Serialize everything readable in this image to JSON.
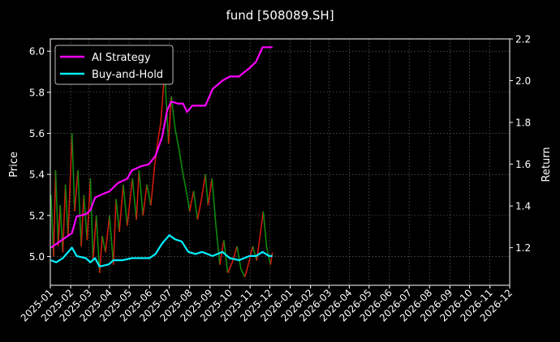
{
  "chart_data": {
    "type": "line",
    "title": "fund [508089.SH]",
    "ylabel_left": "Price",
    "ylabel_right": "Return",
    "grid": true,
    "legend_position": "top-left",
    "x_ticks": [
      "2025-01",
      "2025-02",
      "2025-03",
      "2025-04",
      "2025-05",
      "2025-06",
      "2025-07",
      "2025-08",
      "2025-09",
      "2025-10",
      "2025-11",
      "2025-12",
      "2026-01",
      "2026-02",
      "2026-03",
      "2026-04",
      "2026-05",
      "2026-06",
      "2026-07",
      "2026-08",
      "2026-09",
      "2026-10",
      "2026-11",
      "2026-12"
    ],
    "x_range": [
      "2025-01",
      "2026-12"
    ],
    "left_axis": {
      "range": [
        4.86,
        6.06
      ],
      "ticks": [
        "4.8",
        "5.0",
        "5.2",
        "5.4",
        "5.6",
        "5.8",
        "6.0"
      ]
    },
    "right_axis": {
      "range": [
        1.02,
        2.2
      ],
      "ticks": [
        "1.2",
        "1.4",
        "1.6",
        "1.8",
        "2.0",
        "2.2"
      ]
    },
    "price_series": {
      "colors": {
        "up": "#d01c0c",
        "down": "#0e8a0e"
      },
      "points": [
        [
          "2025-01-02",
          5.3
        ],
        [
          "2025-01-06",
          5.0
        ],
        [
          "2025-01-09",
          5.42
        ],
        [
          "2025-01-13",
          5.05
        ],
        [
          "2025-01-16",
          5.25
        ],
        [
          "2025-01-20",
          5.02
        ],
        [
          "2025-01-24",
          5.35
        ],
        [
          "2025-01-28",
          5.1
        ],
        [
          "2025-02-03",
          5.6
        ],
        [
          "2025-02-07",
          5.22
        ],
        [
          "2025-02-12",
          5.42
        ],
        [
          "2025-02-17",
          5.05
        ],
        [
          "2025-02-21",
          5.3
        ],
        [
          "2025-02-26",
          5.08
        ],
        [
          "2025-03-03",
          5.38
        ],
        [
          "2025-03-07",
          4.98
        ],
        [
          "2025-03-12",
          5.2
        ],
        [
          "2025-03-17",
          4.92
        ],
        [
          "2025-03-21",
          5.1
        ],
        [
          "2025-03-26",
          5.02
        ],
        [
          "2025-04-01",
          5.2
        ],
        [
          "2025-04-07",
          4.96
        ],
        [
          "2025-04-11",
          5.28
        ],
        [
          "2025-04-16",
          5.12
        ],
        [
          "2025-04-22",
          5.35
        ],
        [
          "2025-04-28",
          5.15
        ],
        [
          "2025-05-06",
          5.38
        ],
        [
          "2025-05-12",
          5.18
        ],
        [
          "2025-05-16",
          5.42
        ],
        [
          "2025-05-22",
          5.2
        ],
        [
          "2025-05-28",
          5.35
        ],
        [
          "2025-06-03",
          5.25
        ],
        [
          "2025-06-09",
          5.45
        ],
        [
          "2025-06-13",
          5.55
        ],
        [
          "2025-06-18",
          5.65
        ],
        [
          "2025-06-24",
          5.9
        ],
        [
          "2025-06-30",
          5.55
        ],
        [
          "2025-07-04",
          5.78
        ],
        [
          "2025-07-10",
          5.62
        ],
        [
          "2025-07-16",
          5.52
        ],
        [
          "2025-07-22",
          5.4
        ],
        [
          "2025-07-28",
          5.3
        ],
        [
          "2025-08-01",
          5.22
        ],
        [
          "2025-08-07",
          5.32
        ],
        [
          "2025-08-13",
          5.18
        ],
        [
          "2025-08-19",
          5.28
        ],
        [
          "2025-08-25",
          5.4
        ],
        [
          "2025-08-29",
          5.25
        ],
        [
          "2025-09-04",
          5.38
        ],
        [
          "2025-09-10",
          5.15
        ],
        [
          "2025-09-16",
          4.96
        ],
        [
          "2025-09-22",
          5.08
        ],
        [
          "2025-09-28",
          4.92
        ],
        [
          "2025-10-06",
          4.98
        ],
        [
          "2025-10-12",
          5.05
        ],
        [
          "2025-10-18",
          4.94
        ],
        [
          "2025-10-24",
          4.9
        ],
        [
          "2025-10-30",
          4.97
        ],
        [
          "2025-11-05",
          5.05
        ],
        [
          "2025-11-11",
          4.98
        ],
        [
          "2025-11-17",
          5.12
        ],
        [
          "2025-11-21",
          5.22
        ],
        [
          "2025-11-26",
          5.05
        ],
        [
          "2025-12-02",
          4.96
        ],
        [
          "2025-12-05",
          5.02
        ]
      ]
    },
    "series": [
      {
        "name": "AI Strategy",
        "color": "#ff00ff",
        "points": [
          [
            "2025-01-02",
            1.2
          ],
          [
            "2025-01-20",
            1.24
          ],
          [
            "2025-02-03",
            1.27
          ],
          [
            "2025-02-10",
            1.35
          ],
          [
            "2025-02-24",
            1.36
          ],
          [
            "2025-03-03",
            1.38
          ],
          [
            "2025-03-10",
            1.44
          ],
          [
            "2025-03-24",
            1.46
          ],
          [
            "2025-04-01",
            1.47
          ],
          [
            "2025-04-14",
            1.51
          ],
          [
            "2025-04-28",
            1.53
          ],
          [
            "2025-05-05",
            1.57
          ],
          [
            "2025-05-19",
            1.59
          ],
          [
            "2025-05-31",
            1.6
          ],
          [
            "2025-06-10",
            1.64
          ],
          [
            "2025-06-20",
            1.73
          ],
          [
            "2025-06-28",
            1.86
          ],
          [
            "2025-07-04",
            1.9
          ],
          [
            "2025-07-15",
            1.89
          ],
          [
            "2025-07-22",
            1.89
          ],
          [
            "2025-07-28",
            1.85
          ],
          [
            "2025-08-05",
            1.88
          ],
          [
            "2025-08-19",
            1.88
          ],
          [
            "2025-08-25",
            1.88
          ],
          [
            "2025-09-05",
            1.96
          ],
          [
            "2025-09-20",
            2.0
          ],
          [
            "2025-10-01",
            2.02
          ],
          [
            "2025-10-15",
            2.02
          ],
          [
            "2025-10-31",
            2.06
          ],
          [
            "2025-11-10",
            2.09
          ],
          [
            "2025-11-20",
            2.16
          ],
          [
            "2025-12-05",
            2.16
          ]
        ]
      },
      {
        "name": "Buy-and-Hold",
        "color": "#00f0ff",
        "points": [
          [
            "2025-01-02",
            1.14
          ],
          [
            "2025-01-10",
            1.13
          ],
          [
            "2025-01-20",
            1.15
          ],
          [
            "2025-02-03",
            1.2
          ],
          [
            "2025-02-10",
            1.16
          ],
          [
            "2025-02-24",
            1.15
          ],
          [
            "2025-03-03",
            1.13
          ],
          [
            "2025-03-10",
            1.15
          ],
          [
            "2025-03-17",
            1.11
          ],
          [
            "2025-03-31",
            1.12
          ],
          [
            "2025-04-07",
            1.14
          ],
          [
            "2025-04-21",
            1.14
          ],
          [
            "2025-05-05",
            1.15
          ],
          [
            "2025-05-19",
            1.15
          ],
          [
            "2025-06-01",
            1.15
          ],
          [
            "2025-06-10",
            1.17
          ],
          [
            "2025-06-20",
            1.22
          ],
          [
            "2025-07-01",
            1.26
          ],
          [
            "2025-07-10",
            1.24
          ],
          [
            "2025-07-20",
            1.23
          ],
          [
            "2025-07-30",
            1.18
          ],
          [
            "2025-08-10",
            1.17
          ],
          [
            "2025-08-20",
            1.18
          ],
          [
            "2025-09-05",
            1.16
          ],
          [
            "2025-09-20",
            1.18
          ],
          [
            "2025-10-01",
            1.15
          ],
          [
            "2025-10-15",
            1.14
          ],
          [
            "2025-10-31",
            1.16
          ],
          [
            "2025-11-10",
            1.16
          ],
          [
            "2025-11-20",
            1.18
          ],
          [
            "2025-11-30",
            1.16
          ],
          [
            "2025-12-05",
            1.16
          ]
        ]
      }
    ]
  }
}
